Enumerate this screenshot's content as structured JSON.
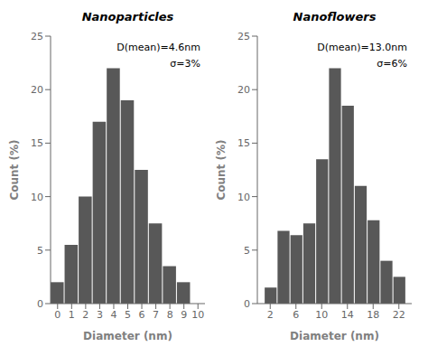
{
  "chart_data": [
    {
      "type": "bar",
      "title": "Nanoparticles",
      "xlabel": "Diameter (nm)",
      "ylabel": "Count (%)",
      "annotations": [
        "D(mean)=4.6nm",
        "σ=3%"
      ],
      "x": [
        0,
        1,
        2,
        3,
        4,
        5,
        6,
        7,
        8,
        9
      ],
      "values": [
        2,
        5.5,
        10,
        17,
        22,
        19,
        12.5,
        7.5,
        3.5,
        2
      ],
      "color": "#585858",
      "xlim": [
        -0.5,
        10.5
      ],
      "xticks": [
        0,
        1,
        2,
        3,
        4,
        5,
        6,
        7,
        8,
        9,
        10
      ],
      "ylim": [
        0,
        25
      ],
      "yticks": [
        0,
        5,
        10,
        15,
        20,
        25
      ],
      "grid": false
    },
    {
      "type": "bar",
      "title": "Nanoflowers",
      "xlabel": "Diameter (nm)",
      "ylabel": "Count (%)",
      "annotations": [
        "D(mean)=13.0nm",
        "σ=6%"
      ],
      "x": [
        2,
        4,
        6,
        8,
        10,
        12,
        14,
        16,
        18,
        20,
        22
      ],
      "values": [
        1.5,
        6.8,
        6.4,
        7.5,
        13.5,
        22,
        18.5,
        11,
        7.8,
        4,
        2.5
      ],
      "color": "#585858",
      "xlim": [
        0,
        24
      ],
      "xticks": [
        2,
        6,
        10,
        14,
        18,
        22
      ],
      "ylim": [
        0,
        25
      ],
      "yticks": [
        0,
        5,
        10,
        15,
        20,
        25
      ],
      "grid": false
    }
  ]
}
